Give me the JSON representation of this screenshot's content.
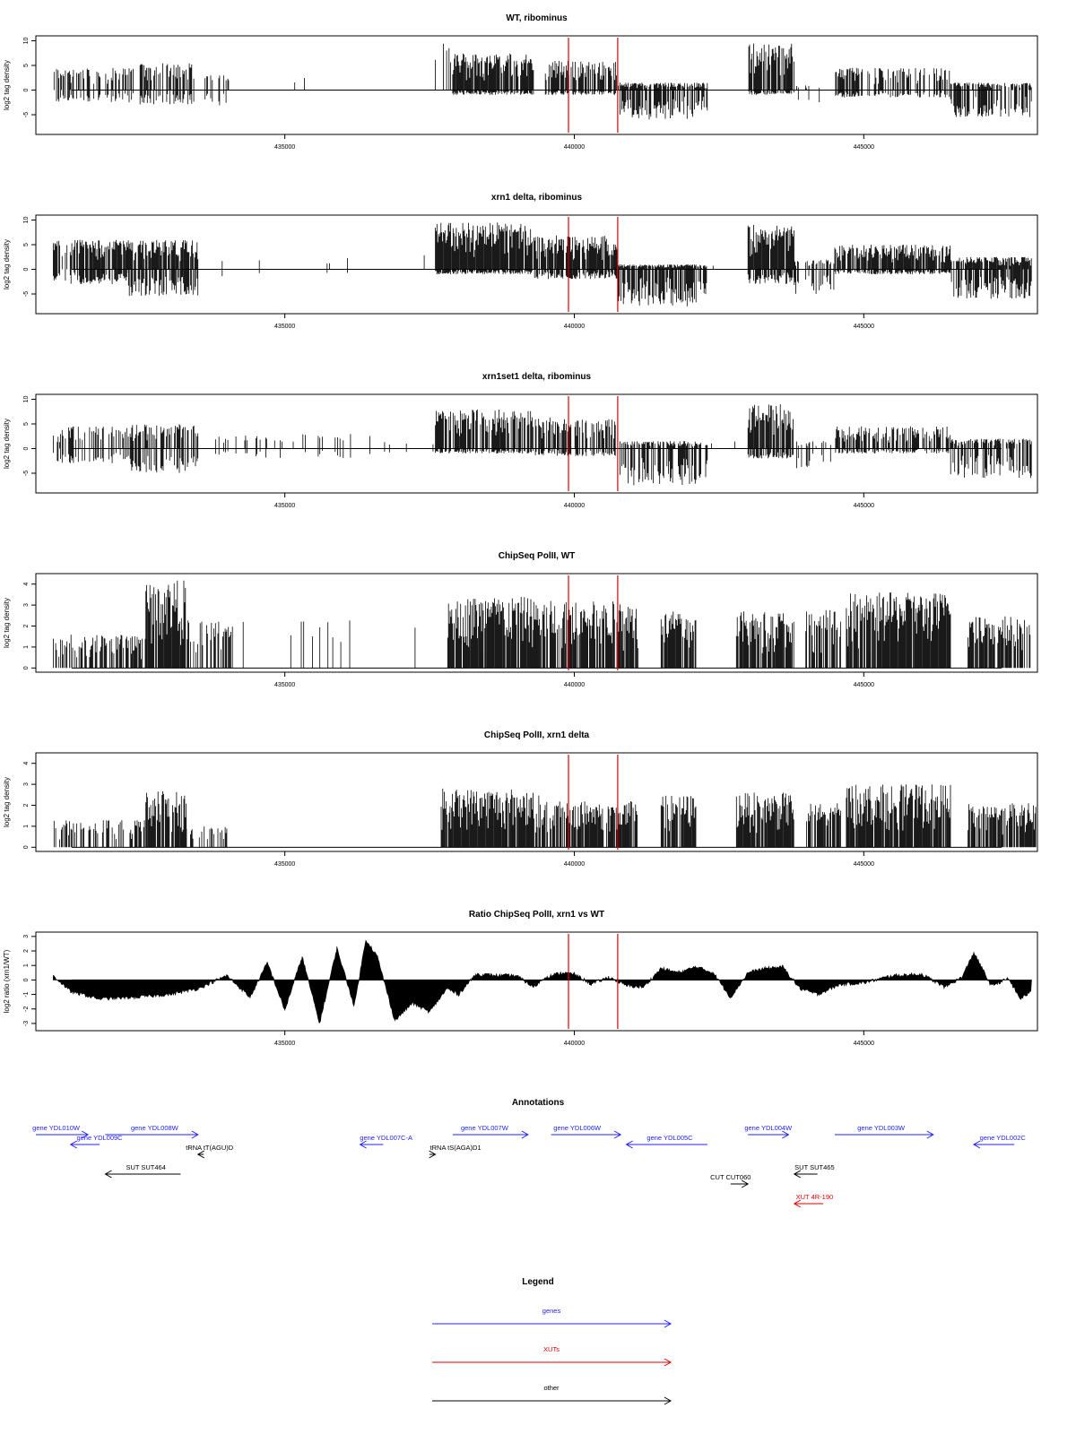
{
  "chart_data": [
    {
      "type": "bar",
      "title": "WT, ribominus",
      "ylabel": "log2 tag density",
      "ylim": [
        -9,
        11
      ],
      "yticks": [
        -5,
        0,
        5,
        10
      ],
      "xlim": [
        430700,
        448000
      ],
      "xticks": [
        435000,
        440000,
        445000
      ],
      "vlines": [
        439900,
        440750
      ],
      "segments": [
        {
          "x0": 431000,
          "x1": 432400,
          "pos": 4.5,
          "neg": -2.5,
          "dens": 0.5
        },
        {
          "x0": 432500,
          "x1": 433400,
          "pos": 5.5,
          "neg": -3.0,
          "dens": 0.6
        },
        {
          "x0": 433400,
          "x1": 434000,
          "pos": 3.0,
          "neg": -3.5,
          "dens": 0.25
        },
        {
          "x0": 434000,
          "x1": 435500,
          "pos": 2.5,
          "neg": 0,
          "dens": 0.02
        },
        {
          "x0": 437600,
          "x1": 437900,
          "pos": 9.5,
          "neg": 0,
          "dens": 0.3
        },
        {
          "x0": 437900,
          "x1": 439300,
          "pos": 7.5,
          "neg": -1.0,
          "dens": 0.9
        },
        {
          "x0": 439300,
          "x1": 439500,
          "pos": 1.0,
          "neg": -2.5,
          "dens": 0.1
        },
        {
          "x0": 439500,
          "x1": 440750,
          "pos": 6.0,
          "neg": -1.0,
          "dens": 0.8
        },
        {
          "x0": 440750,
          "x1": 442300,
          "pos": 1.5,
          "neg": -6.0,
          "dens": 0.8
        },
        {
          "x0": 442300,
          "x1": 443000,
          "pos": 2.0,
          "neg": 0,
          "dens": 0.03
        },
        {
          "x0": 443000,
          "x1": 443800,
          "pos": 9.5,
          "neg": -1.0,
          "dens": 0.85
        },
        {
          "x0": 443800,
          "x1": 444500,
          "pos": 1.0,
          "neg": -3.0,
          "dens": 0.1
        },
        {
          "x0": 444500,
          "x1": 446500,
          "pos": 4.5,
          "neg": -1.5,
          "dens": 0.6
        },
        {
          "x0": 446500,
          "x1": 447900,
          "pos": 1.5,
          "neg": -5.5,
          "dens": 0.75
        }
      ]
    },
    {
      "type": "bar",
      "title": "xrn1 delta, ribominus",
      "ylabel": "log2 tag density",
      "ylim": [
        -9,
        11
      ],
      "yticks": [
        -5,
        0,
        5,
        10
      ],
      "xlim": [
        430700,
        448000
      ],
      "xticks": [
        435000,
        440000,
        445000
      ],
      "vlines": [
        439900,
        440750
      ],
      "segments": [
        {
          "x0": 431000,
          "x1": 432300,
          "pos": 6.0,
          "neg": -3.0,
          "dens": 0.8
        },
        {
          "x0": 432300,
          "x1": 433500,
          "pos": 6.0,
          "neg": -5.5,
          "dens": 0.9
        },
        {
          "x0": 433500,
          "x1": 436000,
          "pos": 2.0,
          "neg": -1.5,
          "dens": 0.04
        },
        {
          "x0": 436000,
          "x1": 437600,
          "pos": 3.0,
          "neg": -1.0,
          "dens": 0.03
        },
        {
          "x0": 437600,
          "x1": 439300,
          "pos": 9.5,
          "neg": -1.0,
          "dens": 0.95
        },
        {
          "x0": 439300,
          "x1": 440750,
          "pos": 7.0,
          "neg": -2.0,
          "dens": 0.9
        },
        {
          "x0": 440750,
          "x1": 442300,
          "pos": 1.0,
          "neg": -7.5,
          "dens": 0.95
        },
        {
          "x0": 442300,
          "x1": 443000,
          "pos": 2.0,
          "neg": 0,
          "dens": 0.04
        },
        {
          "x0": 443000,
          "x1": 443800,
          "pos": 9.0,
          "neg": -3.0,
          "dens": 0.95
        },
        {
          "x0": 443800,
          "x1": 444500,
          "pos": 2.0,
          "neg": -5.0,
          "dens": 0.5
        },
        {
          "x0": 444500,
          "x1": 446500,
          "pos": 5.0,
          "neg": -1.0,
          "dens": 0.85
        },
        {
          "x0": 446500,
          "x1": 447900,
          "pos": 2.5,
          "neg": -6.0,
          "dens": 0.9
        }
      ]
    },
    {
      "type": "bar",
      "title": "xrn1set1 delta, ribominus",
      "ylabel": "log2 tag density",
      "ylim": [
        -9,
        11
      ],
      "yticks": [
        -5,
        0,
        5,
        10
      ],
      "xlim": [
        430700,
        448000
      ],
      "xticks": [
        435000,
        440000,
        445000
      ],
      "vlines": [
        439900,
        440750
      ],
      "segments": [
        {
          "x0": 431000,
          "x1": 432300,
          "pos": 4.5,
          "neg": -3.0,
          "dens": 0.4
        },
        {
          "x0": 432300,
          "x1": 433500,
          "pos": 5.0,
          "neg": -5.0,
          "dens": 0.6
        },
        {
          "x0": 433500,
          "x1": 436500,
          "pos": 3.0,
          "neg": -2.0,
          "dens": 0.1
        },
        {
          "x0": 436500,
          "x1": 437600,
          "pos": 2.5,
          "neg": -1.0,
          "dens": 0.05
        },
        {
          "x0": 437600,
          "x1": 439300,
          "pos": 8.0,
          "neg": -1.0,
          "dens": 0.75
        },
        {
          "x0": 439300,
          "x1": 440750,
          "pos": 6.5,
          "neg": -1.5,
          "dens": 0.7
        },
        {
          "x0": 440750,
          "x1": 442300,
          "pos": 1.5,
          "neg": -7.5,
          "dens": 0.7
        },
        {
          "x0": 442300,
          "x1": 443000,
          "pos": 1.5,
          "neg": 0,
          "dens": 0.04
        },
        {
          "x0": 443000,
          "x1": 443800,
          "pos": 9.0,
          "neg": -2.0,
          "dens": 0.8
        },
        {
          "x0": 443800,
          "x1": 444500,
          "pos": 1.5,
          "neg": -4.0,
          "dens": 0.3
        },
        {
          "x0": 444500,
          "x1": 446500,
          "pos": 4.5,
          "neg": -1.0,
          "dens": 0.6
        },
        {
          "x0": 446500,
          "x1": 447900,
          "pos": 2.0,
          "neg": -6.0,
          "dens": 0.6
        }
      ]
    },
    {
      "type": "bar",
      "title": "ChipSeq PolII, WT",
      "ylabel": "log2 tag density",
      "ylim": [
        -0.2,
        4.5
      ],
      "yticks": [
        0,
        1,
        2,
        3,
        4
      ],
      "xlim": [
        430700,
        448000
      ],
      "xticks": [
        435000,
        440000,
        445000
      ],
      "vlines": [
        439900,
        440750
      ],
      "segments": [
        {
          "x0": 431000,
          "x1": 432600,
          "pos": 1.6,
          "neg": 0,
          "dens": 0.6
        },
        {
          "x0": 432600,
          "x1": 433300,
          "pos": 4.2,
          "neg": 0,
          "dens": 0.95
        },
        {
          "x0": 433300,
          "x1": 434100,
          "pos": 2.3,
          "neg": 0,
          "dens": 0.6
        },
        {
          "x0": 434100,
          "x1": 437600,
          "pos": 2.3,
          "neg": 0,
          "dens": 0.03
        },
        {
          "x0": 437800,
          "x1": 439300,
          "pos": 3.4,
          "neg": 0,
          "dens": 0.9
        },
        {
          "x0": 439300,
          "x1": 441100,
          "pos": 3.2,
          "neg": 0,
          "dens": 0.8
        },
        {
          "x0": 441500,
          "x1": 442100,
          "pos": 2.7,
          "neg": 0,
          "dens": 0.85
        },
        {
          "x0": 442800,
          "x1": 443800,
          "pos": 2.7,
          "neg": 0,
          "dens": 0.85
        },
        {
          "x0": 444000,
          "x1": 444600,
          "pos": 2.8,
          "neg": 0,
          "dens": 0.8
        },
        {
          "x0": 444700,
          "x1": 446500,
          "pos": 3.6,
          "neg": 0,
          "dens": 0.95
        },
        {
          "x0": 446800,
          "x1": 447900,
          "pos": 2.5,
          "neg": 0,
          "dens": 0.75
        }
      ]
    },
    {
      "type": "bar",
      "title": "ChipSeq PolII, xrn1 delta",
      "ylabel": "log2 tag density",
      "ylim": [
        -0.2,
        4.5
      ],
      "yticks": [
        0,
        1,
        2,
        3,
        4
      ],
      "xlim": [
        430700,
        448000
      ],
      "xticks": [
        435000,
        440000,
        445000
      ],
      "vlines": [
        439900,
        440750
      ],
      "segments": [
        {
          "x0": 431000,
          "x1": 432600,
          "pos": 1.3,
          "neg": 0,
          "dens": 0.4
        },
        {
          "x0": 432600,
          "x1": 433300,
          "pos": 2.7,
          "neg": 0,
          "dens": 0.9
        },
        {
          "x0": 433300,
          "x1": 434000,
          "pos": 1.0,
          "neg": 0,
          "dens": 0.35
        },
        {
          "x0": 434000,
          "x1": 437500,
          "pos": 0.4,
          "neg": 0,
          "dens": 0.01
        },
        {
          "x0": 437700,
          "x1": 439400,
          "pos": 2.8,
          "neg": 0,
          "dens": 0.95
        },
        {
          "x0": 439400,
          "x1": 441100,
          "pos": 2.2,
          "neg": 0,
          "dens": 0.85
        },
        {
          "x0": 441500,
          "x1": 442100,
          "pos": 2.5,
          "neg": 0,
          "dens": 0.9
        },
        {
          "x0": 442800,
          "x1": 443800,
          "pos": 2.6,
          "neg": 0,
          "dens": 0.9
        },
        {
          "x0": 444000,
          "x1": 444600,
          "pos": 2.1,
          "neg": 0,
          "dens": 0.8
        },
        {
          "x0": 444700,
          "x1": 446500,
          "pos": 3.0,
          "neg": 0,
          "dens": 0.95
        },
        {
          "x0": 446800,
          "x1": 448000,
          "pos": 2.1,
          "neg": 0,
          "dens": 0.8
        }
      ]
    },
    {
      "type": "area",
      "title": "Ratio ChipSeq PolII, xrn1 vs WT",
      "ylabel": "log2 ratio (xrn1/WT)",
      "ylim": [
        -3.5,
        3.3
      ],
      "yticks": [
        -3,
        -2,
        -1,
        0,
        1,
        2,
        3
      ],
      "xlim": [
        430700,
        448000
      ],
      "xticks": [
        435000,
        440000,
        445000
      ],
      "vlines": [
        439900,
        440750
      ],
      "x": [
        431000,
        431300,
        431800,
        432400,
        433000,
        433500,
        434000,
        434400,
        434700,
        435000,
        435300,
        435600,
        435900,
        436200,
        436400,
        436600,
        436900,
        437200,
        437500,
        437800,
        438000,
        438300,
        438700,
        439000,
        439300,
        439500,
        439800,
        440000,
        440300,
        440600,
        440900,
        441200,
        441500,
        441800,
        442100,
        442400,
        442700,
        443000,
        443300,
        443600,
        443900,
        444200,
        444600,
        445000,
        445500,
        446000,
        446400,
        446700,
        446900,
        447200,
        447500,
        447700,
        447900
      ],
      "y": [
        0.3,
        -0.8,
        -1.3,
        -1.2,
        -1.0,
        -0.6,
        0.3,
        -1.2,
        1.2,
        -2.1,
        1.6,
        -3.0,
        2.2,
        -1.8,
        2.8,
        1.6,
        -2.8,
        -1.6,
        -2.2,
        -0.6,
        -1.0,
        0.4,
        0.3,
        0.3,
        -0.5,
        0.2,
        0.5,
        0.4,
        -0.3,
        0.2,
        -0.4,
        -0.5,
        0.8,
        0.5,
        0.9,
        0.5,
        -1.2,
        0.5,
        0.8,
        0.9,
        -0.6,
        -1.0,
        -0.3,
        -0.2,
        0.3,
        0.4,
        -0.5,
        0.2,
        1.9,
        -0.4,
        0.1,
        -1.3,
        -0.8
      ]
    }
  ],
  "annotations": {
    "title": "Annotations",
    "tracks": [
      {
        "label": "gene YDL010W",
        "x0": 430700,
        "x1": 431600,
        "dir": "right",
        "color": "#2020ff",
        "row": 0,
        "labelx": 431050
      },
      {
        "label": "gene YDL009C",
        "x0": 431300,
        "x1": 431800,
        "dir": "left",
        "color": "#2020ff",
        "row": 1,
        "labelx": 431800
      },
      {
        "label": "gene YDL008W",
        "x0": 431900,
        "x1": 433500,
        "dir": "right",
        "color": "#2020ff",
        "row": 0,
        "labelx": 432750
      },
      {
        "label": "tRNA tT(AGU)D",
        "x0": 433500,
        "x1": 433600,
        "dir": "left",
        "color": "#000000",
        "row": 2,
        "labelx": 433700
      },
      {
        "label": "SUT SUT464",
        "x0": 431900,
        "x1": 433200,
        "dir": "left",
        "color": "#000000",
        "row": 4,
        "labelx": 432600
      },
      {
        "label": "gene YDL007C-A",
        "x0": 436300,
        "x1": 436700,
        "dir": "left",
        "color": "#2020ff",
        "row": 1,
        "labelx": 436750
      },
      {
        "label": "tRNA tS(AGA)D1",
        "x0": 437500,
        "x1": 437600,
        "dir": "right",
        "color": "#000000",
        "row": 2,
        "labelx": 437950
      },
      {
        "label": "gene YDL007W",
        "x0": 437900,
        "x1": 439200,
        "dir": "right",
        "color": "#2020ff",
        "row": 0,
        "labelx": 438450
      },
      {
        "label": "gene YDL006W",
        "x0": 439600,
        "x1": 440800,
        "dir": "right",
        "color": "#2020ff",
        "row": 0,
        "labelx": 440050
      },
      {
        "label": "gene YDL005C",
        "x0": 440900,
        "x1": 442300,
        "dir": "left",
        "color": "#2020ff",
        "row": 1,
        "labelx": 441650
      },
      {
        "label": "gene YDL004W",
        "x0": 443000,
        "x1": 443700,
        "dir": "right",
        "color": "#2020ff",
        "row": 0,
        "labelx": 443350
      },
      {
        "label": "CUT CUT060",
        "x0": 442700,
        "x1": 443000,
        "dir": "right",
        "color": "#000000",
        "row": 5,
        "labelx": 442700
      },
      {
        "label": "SUT SUT465",
        "x0": 443800,
        "x1": 444200,
        "dir": "left",
        "color": "#000000",
        "row": 4,
        "labelx": 444150
      },
      {
        "label": "XUT 4R-190",
        "x0": 443800,
        "x1": 444300,
        "dir": "left",
        "color": "#e00000",
        "row": 7,
        "labelx": 444150
      },
      {
        "label": "gene YDL003W",
        "x0": 444500,
        "x1": 446200,
        "dir": "right",
        "color": "#2020ff",
        "row": 0,
        "labelx": 445300
      },
      {
        "label": "gene YDL002C",
        "x0": 446900,
        "x1": 447600,
        "dir": "left",
        "color": "#2020ff",
        "row": 1,
        "labelx": 447400
      }
    ]
  },
  "legend": {
    "title": "Legend",
    "items": [
      {
        "label": "genes",
        "color": "#2020ff"
      },
      {
        "label": "XUTs",
        "color": "#e00000"
      },
      {
        "label": "other",
        "color": "#000000"
      }
    ]
  }
}
